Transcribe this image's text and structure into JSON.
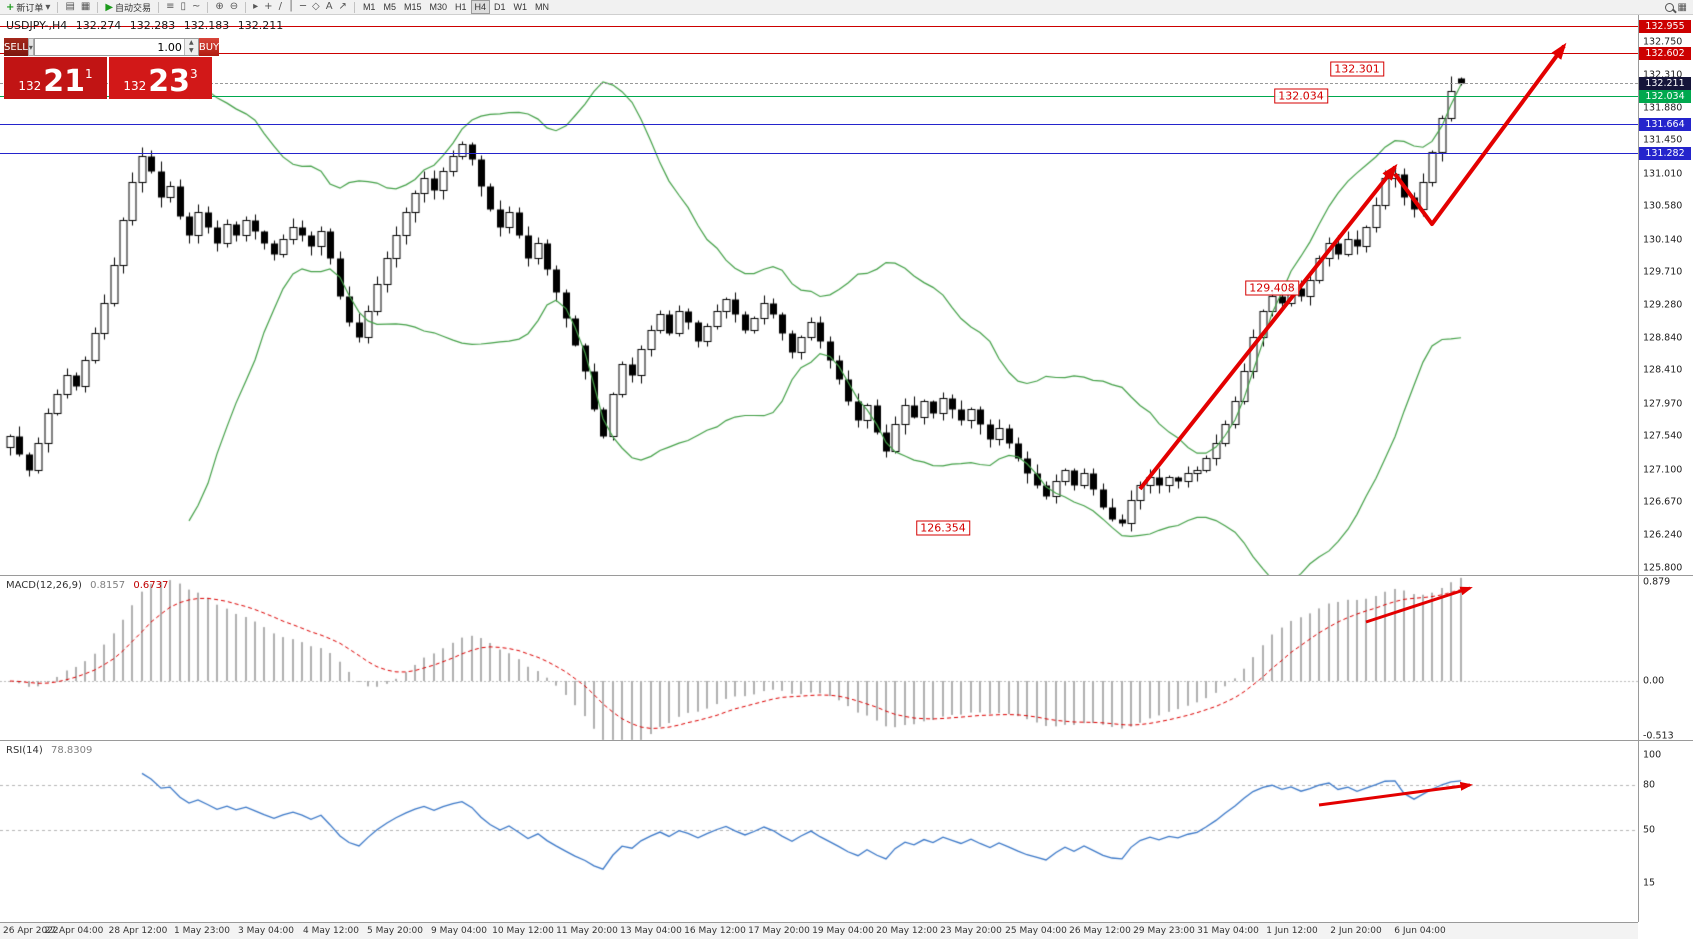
{
  "toolbar": {
    "new_order_label": "新订单",
    "auto_trade_label": "自动交易",
    "left_icons": [
      "▤",
      "▦"
    ],
    "chart_icons": [
      "≡",
      "▯",
      "~"
    ],
    "zoom_icons": [
      "⊕",
      "⊖"
    ],
    "tool_icons": [
      "▸",
      "+",
      "/",
      "│",
      "─",
      "◇",
      "A",
      "↗"
    ],
    "timeframes": [
      "M1",
      "M5",
      "M15",
      "M30",
      "H1",
      "H4",
      "D1",
      "W1",
      "MN"
    ],
    "active_timeframe": "H4"
  },
  "quote_header": {
    "symbol": "USDJPY-,H4",
    "open": "132.274",
    "high": "132.283",
    "low": "132.183",
    "close": "132.211"
  },
  "trade_panel": {
    "sell_label": "SELL",
    "buy_label": "BUY",
    "volume": "1.00",
    "sell_small": "132",
    "sell_big": "21",
    "sell_sup": "1",
    "buy_small": "132",
    "buy_big": "23",
    "buy_sup": "3"
  },
  "price_axis": {
    "ladder": [
      "132.750",
      "132.310",
      "131.880",
      "131.450",
      "131.010",
      "130.580",
      "130.140",
      "129.710",
      "129.280",
      "128.840",
      "128.410",
      "127.970",
      "127.540",
      "127.100",
      "126.670",
      "126.240",
      "125.800"
    ]
  },
  "levels": [
    {
      "price": 132.955,
      "color": "#cc0000",
      "style": "solid",
      "badge": "132.955",
      "badge_bg": "#cc0000"
    },
    {
      "price": 132.602,
      "color": "#cc0000",
      "style": "solid",
      "badge": "132.602",
      "badge_bg": "#cc0000"
    },
    {
      "price": 132.211,
      "color": "#999999",
      "style": "dashed",
      "badge": "132.211",
      "badge_bg": "#15153a"
    },
    {
      "price": 132.034,
      "color": "#00a84e",
      "style": "solid",
      "badge": "132.034",
      "badge_bg": "#00a84e"
    },
    {
      "price": 131.664,
      "color": "#2424cc",
      "style": "solid",
      "badge": "131.664",
      "badge_bg": "#2424cc"
    },
    {
      "price": 131.282,
      "color": "#2424cc",
      "style": "solid",
      "badge": "131.282",
      "badge_bg": "#2424cc"
    }
  ],
  "annotations": [
    {
      "text": "132.301",
      "bar": 143,
      "price": 132.39
    },
    {
      "text": "132.034",
      "bar": 137,
      "price": 132.034
    },
    {
      "text": "129.408",
      "bar": 134,
      "price": 129.5
    },
    {
      "text": "126.354",
      "bar": 99,
      "price": 126.33
    }
  ],
  "arrows": [
    {
      "panel": "price",
      "points": [
        [
          120,
          126.85
        ],
        [
          147,
          131.1
        ]
      ],
      "head": true,
      "width": 4
    },
    {
      "panel": "price",
      "points": [
        [
          147,
          131.0
        ],
        [
          151,
          130.35
        ],
        [
          165,
          132.7
        ]
      ],
      "head": true,
      "width": 4
    },
    {
      "panel": "macd",
      "points": [
        [
          144,
          0.52
        ],
        [
          155,
          0.83
        ]
      ],
      "head": true,
      "width": 3
    },
    {
      "panel": "rsi",
      "points": [
        [
          139,
          67
        ],
        [
          155,
          80
        ]
      ],
      "head": true,
      "width": 3
    }
  ],
  "macd_panel": {
    "label": "MACD(12,26,9)",
    "main_value": "0.8157",
    "signal_value": "0.6737",
    "axis": [
      "0.879",
      "0.00",
      "-0.513"
    ]
  },
  "rsi_panel": {
    "label": "RSI(14)",
    "value": "78.8309",
    "axis": [
      "100",
      "80",
      "50",
      "15"
    ],
    "levels": [
      80,
      50
    ]
  },
  "timeline": [
    "26 Apr 2022",
    "27 Apr 04:00",
    "28 Apr 12:00",
    "1 May 23:00",
    "3 May 04:00",
    "4 May 12:00",
    "5 May 20:00",
    "9 May 04:00",
    "10 May 12:00",
    "11 May 20:00",
    "13 May 04:00",
    "16 May 12:00",
    "17 May 20:00",
    "19 May 04:00",
    "20 May 12:00",
    "23 May 20:00",
    "25 May 04:00",
    "26 May 12:00",
    "29 May 23:00",
    "31 May 04:00",
    "1 Jun 12:00",
    "2 Jun 20:00",
    "6 Jun 04:00"
  ],
  "chart_data": {
    "type": "candlestick",
    "symbol": "USDJPY",
    "period": "H4",
    "title": "USDJPY-,H4",
    "price_axis_range": [
      125.71,
      133.12
    ],
    "indicators": {
      "bollinger": [
        20,
        2
      ],
      "macd": [
        12,
        26,
        9
      ],
      "rsi": [
        14
      ]
    },
    "closes": [
      127.55,
      127.3,
      127.1,
      127.45,
      127.85,
      128.1,
      128.35,
      128.2,
      128.55,
      128.9,
      129.3,
      129.8,
      130.4,
      130.9,
      131.25,
      131.05,
      130.7,
      130.85,
      130.45,
      130.2,
      130.5,
      130.3,
      130.1,
      130.35,
      130.2,
      130.4,
      130.25,
      130.1,
      129.95,
      130.15,
      130.3,
      130.2,
      130.05,
      130.25,
      129.9,
      129.4,
      129.05,
      128.85,
      129.2,
      129.55,
      129.9,
      130.2,
      130.5,
      130.75,
      130.95,
      130.8,
      131.05,
      131.25,
      131.4,
      131.2,
      130.85,
      130.55,
      130.3,
      130.5,
      130.2,
      129.9,
      130.1,
      129.75,
      129.45,
      129.1,
      128.75,
      128.4,
      127.9,
      127.55,
      128.1,
      128.5,
      128.35,
      128.7,
      128.95,
      129.15,
      128.9,
      129.2,
      129.05,
      128.8,
      129.0,
      129.2,
      129.35,
      129.15,
      128.95,
      129.1,
      129.3,
      129.15,
      128.9,
      128.65,
      128.85,
      129.05,
      128.8,
      128.55,
      128.3,
      128.0,
      127.75,
      127.95,
      127.6,
      127.35,
      127.7,
      127.95,
      127.8,
      128.0,
      127.85,
      128.05,
      127.9,
      127.75,
      127.9,
      127.7,
      127.5,
      127.65,
      127.45,
      127.25,
      127.05,
      126.9,
      126.75,
      126.95,
      127.1,
      126.9,
      127.05,
      126.85,
      126.6,
      126.45,
      126.4,
      126.7,
      126.9,
      127.0,
      126.9,
      127.0,
      126.95,
      127.05,
      127.1,
      127.25,
      127.45,
      127.7,
      128.0,
      128.4,
      128.85,
      129.2,
      129.4,
      129.3,
      129.5,
      129.4,
      129.6,
      129.9,
      130.1,
      129.95,
      130.15,
      130.05,
      130.3,
      130.6,
      130.95,
      131.0,
      130.7,
      130.55,
      130.9,
      131.3,
      131.75,
      132.1,
      132.211
    ],
    "overrides": {
      "118": {
        "l": 126.354
      },
      "153": {
        "h": 132.301
      },
      "154": {
        "o": 132.274,
        "h": 132.283,
        "l": 132.183,
        "c": 132.211
      }
    }
  }
}
